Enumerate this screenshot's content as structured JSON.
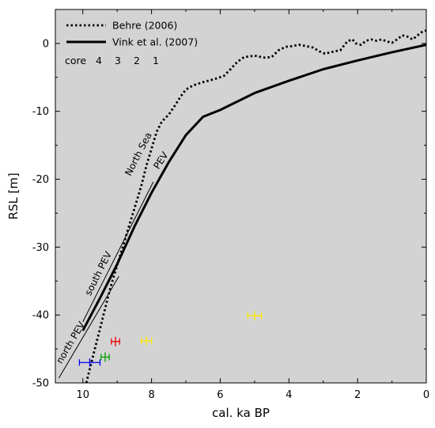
{
  "chart_data": {
    "type": "line",
    "xlabel": "cal. ka BP",
    "ylabel": "RSL [m]",
    "xlim": [
      10.8,
      0
    ],
    "ylim": [
      -50,
      5
    ],
    "x_ticks": [
      10,
      8,
      6,
      4,
      2,
      0
    ],
    "y_ticks": [
      0,
      -10,
      -20,
      -30,
      -40,
      -50
    ],
    "x_tick_labels": [
      "10",
      "8",
      "6",
      "4",
      "2",
      "0"
    ],
    "y_tick_labels": [
      "0",
      "-10",
      "-20",
      "-30",
      "-40",
      "-50"
    ],
    "plot_background": "#d3d3d3",
    "legend_placement": "top-left",
    "series": [
      {
        "name": "Behre (2006)",
        "style": "dotted",
        "color": "#000000",
        "points": [
          [
            9.9,
            -50
          ],
          [
            9.8,
            -48
          ],
          [
            9.65,
            -45
          ],
          [
            9.5,
            -42
          ],
          [
            9.35,
            -39
          ],
          [
            9.2,
            -36
          ],
          [
            9.05,
            -33.5
          ],
          [
            8.9,
            -31
          ],
          [
            8.75,
            -28.5
          ],
          [
            8.6,
            -26
          ],
          [
            8.45,
            -23.5
          ],
          [
            8.3,
            -21
          ],
          [
            8.15,
            -18
          ],
          [
            8.0,
            -15.5
          ],
          [
            7.85,
            -13
          ],
          [
            7.7,
            -11.5
          ],
          [
            7.5,
            -10.5
          ],
          [
            7.3,
            -9
          ],
          [
            7.15,
            -7.8
          ],
          [
            7.0,
            -6.8
          ],
          [
            6.8,
            -6.2
          ],
          [
            6.5,
            -5.7
          ],
          [
            6.2,
            -5.3
          ],
          [
            5.9,
            -4.8
          ],
          [
            5.7,
            -3.8
          ],
          [
            5.5,
            -2.7
          ],
          [
            5.3,
            -2.0
          ],
          [
            5.0,
            -1.8
          ],
          [
            4.7,
            -2.1
          ],
          [
            4.5,
            -2.0
          ],
          [
            4.3,
            -1.0
          ],
          [
            4.1,
            -0.5
          ],
          [
            3.9,
            -0.4
          ],
          [
            3.7,
            -0.2
          ],
          [
            3.5,
            -0.4
          ],
          [
            3.3,
            -0.6
          ],
          [
            3.1,
            -1.2
          ],
          [
            2.95,
            -1.5
          ],
          [
            2.7,
            -1.2
          ],
          [
            2.5,
            -1.0
          ],
          [
            2.3,
            0.3
          ],
          [
            2.15,
            0.6
          ],
          [
            2.05,
            0.0
          ],
          [
            1.9,
            -0.2
          ],
          [
            1.75,
            0.4
          ],
          [
            1.6,
            0.6
          ],
          [
            1.45,
            0.4
          ],
          [
            1.3,
            0.6
          ],
          [
            1.15,
            0.3
          ],
          [
            1.0,
            0.1
          ],
          [
            0.85,
            0.6
          ],
          [
            0.7,
            1.2
          ],
          [
            0.55,
            1.0
          ],
          [
            0.4,
            0.6
          ],
          [
            0.25,
            1.2
          ],
          [
            0.1,
            1.8
          ],
          [
            0.0,
            1.9
          ]
        ]
      },
      {
        "name": "Vink et al. (2007)",
        "style": "solid",
        "color": "#000000",
        "points": [
          [
            10.0,
            -42.3
          ],
          [
            9.5,
            -37.5
          ],
          [
            9.0,
            -32.5
          ],
          [
            8.5,
            -27
          ],
          [
            8.0,
            -22
          ],
          [
            7.5,
            -17.5
          ],
          [
            7.0,
            -13.5
          ],
          [
            6.5,
            -10.8
          ],
          [
            6.0,
            -9.8
          ],
          [
            5.0,
            -7.3
          ],
          [
            4.0,
            -5.5
          ],
          [
            3.0,
            -3.8
          ],
          [
            2.0,
            -2.5
          ],
          [
            1.0,
            -1.3
          ],
          [
            0.0,
            -0.2
          ]
        ]
      }
    ],
    "reference_lines": [
      {
        "label": "south PEV",
        "points": [
          [
            10.0,
            -41
          ],
          [
            7.95,
            -20.4
          ]
        ]
      },
      {
        "label": "north PEV",
        "points": [
          [
            10.7,
            -49.3
          ],
          [
            8.95,
            -34.3
          ]
        ]
      }
    ],
    "text_annotations": [
      {
        "label": "North Sea",
        "x": 8.3,
        "y": -16.5,
        "angle": -63
      },
      {
        "label": "PEV",
        "x": 7.65,
        "y": -17.5,
        "angle": -57
      }
    ],
    "cores_legend_title": "core",
    "cores": [
      {
        "name": "4",
        "color": "#0000ee",
        "x": 9.8,
        "y": -47.0,
        "xerr": 0.3,
        "yerr": 0.6
      },
      {
        "name": "3",
        "color": "#00a000",
        "x": 9.35,
        "y": -46.2,
        "xerr": 0.12,
        "yerr": 0.7
      },
      {
        "name": "2",
        "color": "#ee0000",
        "x": 9.05,
        "y": -43.9,
        "xerr": 0.12,
        "yerr": 0.7
      },
      {
        "name": "1",
        "color": "#ffee00",
        "x": 8.15,
        "y": -43.8,
        "xerr": 0.15,
        "yerr": 0.7
      },
      {
        "name": "1",
        "color": "#ffee00",
        "x": 5.0,
        "y": -40.1,
        "xerr": 0.2,
        "yerr": 0.7
      }
    ]
  }
}
